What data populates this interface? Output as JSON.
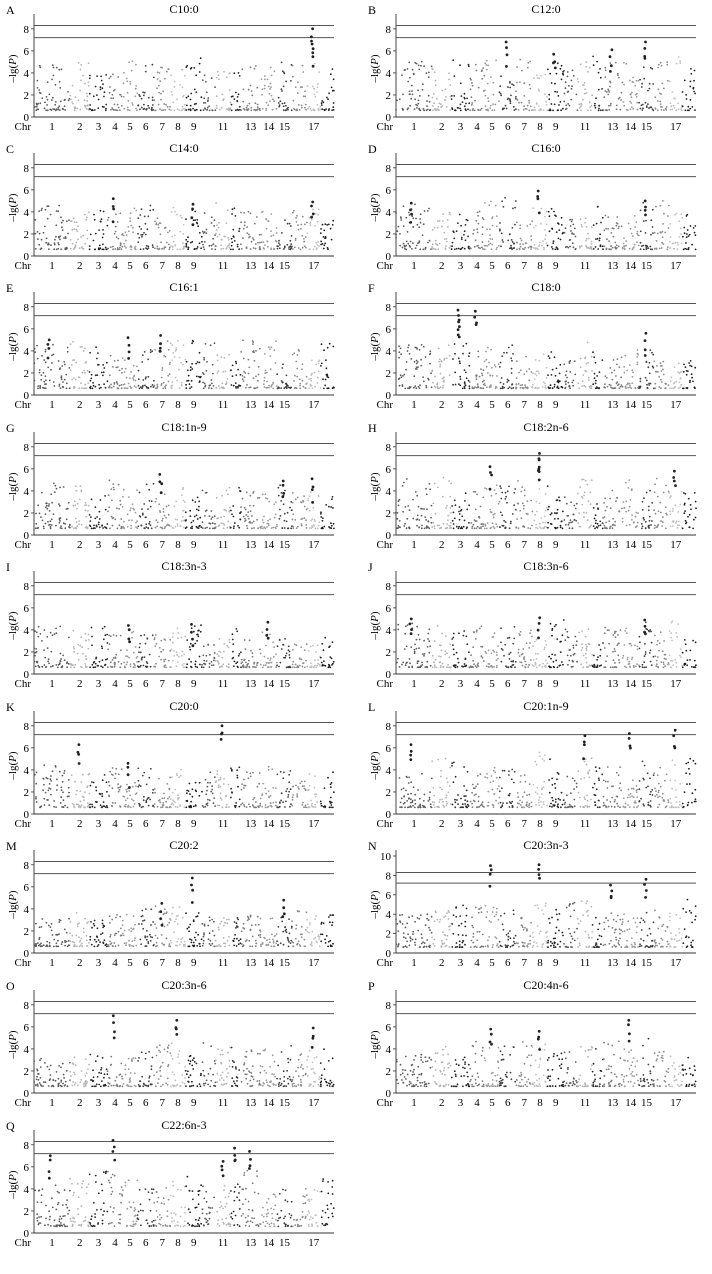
{
  "figure": {
    "x_axis_prefix": "Chr",
    "x_tick_labels": [
      "1",
      "2",
      "3",
      "4",
      "5",
      "6",
      "7",
      "8",
      "9",
      "11",
      "13",
      "14",
      "15",
      "17"
    ],
    "y_label_pre": "–lg(",
    "y_label_var": "P",
    "y_label_post": ")"
  },
  "chart_data": [
    {
      "id": "A",
      "type": "scatter",
      "title": "C10:0",
      "ylim": [
        0,
        8.8
      ],
      "yticks": [
        0,
        2,
        4,
        6,
        8
      ],
      "thresholds": [
        7.2,
        8.3
      ],
      "peaks": [
        {
          "chr": 17,
          "value": 8.0
        },
        {
          "chr": 17,
          "value": 6.2
        }
      ],
      "typical_max": 4.6
    },
    {
      "id": "B",
      "type": "scatter",
      "title": "C12:0",
      "ylim": [
        0,
        8.8
      ],
      "yticks": [
        0,
        2,
        4,
        6,
        8
      ],
      "thresholds": [
        7.2,
        8.3
      ],
      "peaks": [
        {
          "chr": 6,
          "value": 6.8
        },
        {
          "chr": 15,
          "value": 6.8
        },
        {
          "chr": 13,
          "value": 6.1
        },
        {
          "chr": 9,
          "value": 5.7
        }
      ],
      "typical_max": 4.8
    },
    {
      "id": "C",
      "type": "scatter",
      "title": "C14:0",
      "ylim": [
        0,
        8.8
      ],
      "yticks": [
        0,
        2,
        4,
        6,
        8
      ],
      "thresholds": [
        7.2,
        8.3
      ],
      "peaks": [
        {
          "chr": 4,
          "value": 5.2
        },
        {
          "chr": 17,
          "value": 4.9
        },
        {
          "chr": 9,
          "value": 4.7
        }
      ],
      "typical_max": 4.2
    },
    {
      "id": "D",
      "type": "scatter",
      "title": "C16:0",
      "ylim": [
        0,
        8.8
      ],
      "yticks": [
        0,
        2,
        4,
        6,
        8
      ],
      "thresholds": [
        7.2,
        8.3
      ],
      "peaks": [
        {
          "chr": 8,
          "value": 5.9
        },
        {
          "chr": 15,
          "value": 5.0
        },
        {
          "chr": 1,
          "value": 4.8
        }
      ],
      "typical_max": 4.3
    },
    {
      "id": "E",
      "type": "scatter",
      "title": "C16:1",
      "ylim": [
        0,
        8.8
      ],
      "yticks": [
        0,
        2,
        4,
        6,
        8
      ],
      "thresholds": [
        7.2,
        8.3
      ],
      "peaks": [
        {
          "chr": 5,
          "value": 5.2
        },
        {
          "chr": 7,
          "value": 5.4
        },
        {
          "chr": 1,
          "value": 5.0
        }
      ],
      "typical_max": 4.3
    },
    {
      "id": "F",
      "type": "scatter",
      "title": "C18:0",
      "ylim": [
        0,
        8.8
      ],
      "yticks": [
        0,
        2,
        4,
        6,
        8
      ],
      "thresholds": [
        7.2,
        8.3
      ],
      "peaks": [
        {
          "chr": 3,
          "value": 7.7
        },
        {
          "chr": 4,
          "value": 7.6
        },
        {
          "chr": 3,
          "value": 6.8
        },
        {
          "chr": 15,
          "value": 5.6
        }
      ],
      "typical_max": 4.0
    },
    {
      "id": "G",
      "type": "scatter",
      "title": "C18:1n-9",
      "ylim": [
        0,
        8.8
      ],
      "yticks": [
        0,
        2,
        4,
        6,
        8
      ],
      "thresholds": [
        7.2,
        8.3
      ],
      "peaks": [
        {
          "chr": 7,
          "value": 5.5
        },
        {
          "chr": 17,
          "value": 5.1
        },
        {
          "chr": 15,
          "value": 4.9
        }
      ],
      "typical_max": 4.2
    },
    {
      "id": "H",
      "type": "scatter",
      "title": "C18:2n-6",
      "ylim": [
        0,
        8.8
      ],
      "yticks": [
        0,
        2,
        4,
        6,
        8
      ],
      "thresholds": [
        7.2,
        8.3
      ],
      "peaks": [
        {
          "chr": 8,
          "value": 7.4
        },
        {
          "chr": 5,
          "value": 6.2
        },
        {
          "chr": 17,
          "value": 5.8
        },
        {
          "chr": 8,
          "value": 6.8
        }
      ],
      "typical_max": 4.4
    },
    {
      "id": "I",
      "type": "scatter",
      "title": "C18:3n-3",
      "ylim": [
        0,
        8.8
      ],
      "yticks": [
        0,
        2,
        4,
        6,
        8
      ],
      "thresholds": [
        7.2,
        8.3
      ],
      "peaks": [
        {
          "chr": 14,
          "value": 4.7
        },
        {
          "chr": 9,
          "value": 4.5
        },
        {
          "chr": 5,
          "value": 4.4
        }
      ],
      "typical_max": 3.6
    },
    {
      "id": "J",
      "type": "scatter",
      "title": "C18:3n-6",
      "ylim": [
        0,
        8.8
      ],
      "yticks": [
        0,
        2,
        4,
        6,
        8
      ],
      "thresholds": [
        7.2,
        8.3
      ],
      "peaks": [
        {
          "chr": 1,
          "value": 5.0
        },
        {
          "chr": 8,
          "value": 5.1
        },
        {
          "chr": 15,
          "value": 4.9
        }
      ],
      "typical_max": 4.0
    },
    {
      "id": "K",
      "type": "scatter",
      "title": "C20:0",
      "ylim": [
        0,
        8.8
      ],
      "yticks": [
        0,
        2,
        4,
        6,
        8
      ],
      "thresholds": [
        7.2,
        8.3
      ],
      "peaks": [
        {
          "chr": 11,
          "value": 8.0
        },
        {
          "chr": 2,
          "value": 6.3
        },
        {
          "chr": 5,
          "value": 4.6
        }
      ],
      "typical_max": 3.6
    },
    {
      "id": "L",
      "type": "scatter",
      "title": "C20:1n-9",
      "ylim": [
        0,
        8.8
      ],
      "yticks": [
        0,
        2,
        4,
        6,
        8
      ],
      "thresholds": [
        7.2,
        8.3
      ],
      "peaks": [
        {
          "chr": 14,
          "value": 7.3
        },
        {
          "chr": 17,
          "value": 7.6
        },
        {
          "chr": 11,
          "value": 7.1
        },
        {
          "chr": 1,
          "value": 6.3
        }
      ],
      "typical_max": 4.6
    },
    {
      "id": "M",
      "type": "scatter",
      "title": "C20:2",
      "ylim": [
        0,
        8.8
      ],
      "yticks": [
        0,
        2,
        4,
        6,
        8
      ],
      "thresholds": [
        7.2,
        8.3
      ],
      "peaks": [
        {
          "chr": 9,
          "value": 6.8
        },
        {
          "chr": 15,
          "value": 4.8
        },
        {
          "chr": 7,
          "value": 4.5
        }
      ],
      "typical_max": 3.7
    },
    {
      "id": "N",
      "type": "scatter",
      "title": "C20:3n-3",
      "ylim": [
        0,
        10
      ],
      "yticks": [
        0,
        2,
        4,
        6,
        8,
        10
      ],
      "thresholds": [
        7.2,
        8.3
      ],
      "peaks": [
        {
          "chr": 5,
          "value": 9.0
        },
        {
          "chr": 8,
          "value": 9.1
        },
        {
          "chr": 15,
          "value": 7.6
        },
        {
          "chr": 13,
          "value": 7.0
        }
      ],
      "typical_max": 5.0
    },
    {
      "id": "O",
      "type": "scatter",
      "title": "C20:3n-6",
      "ylim": [
        0,
        8.8
      ],
      "yticks": [
        0,
        2,
        4,
        6,
        8
      ],
      "thresholds": [
        7.2,
        8.3
      ],
      "peaks": [
        {
          "chr": 4,
          "value": 7.0
        },
        {
          "chr": 8,
          "value": 6.6
        },
        {
          "chr": 17,
          "value": 5.9
        }
      ],
      "typical_max": 4.0
    },
    {
      "id": "P",
      "type": "scatter",
      "title": "C20:4n-6",
      "ylim": [
        0,
        8.8
      ],
      "yticks": [
        0,
        2,
        4,
        6,
        8
      ],
      "thresholds": [
        7.2,
        8.3
      ],
      "peaks": [
        {
          "chr": 14,
          "value": 6.6
        },
        {
          "chr": 5,
          "value": 5.8
        },
        {
          "chr": 8,
          "value": 5.6
        }
      ],
      "typical_max": 4.0
    },
    {
      "id": "Q",
      "type": "scatter",
      "title": "C22:6n-3",
      "ylim": [
        0,
        8.8
      ],
      "yticks": [
        0,
        2,
        4,
        6,
        8
      ],
      "thresholds": [
        7.2,
        8.3
      ],
      "peaks": [
        {
          "chr": 4,
          "value": 8.4
        },
        {
          "chr": 12,
          "value": 7.7
        },
        {
          "chr": 13,
          "value": 7.4
        },
        {
          "chr": 1,
          "value": 7.0
        },
        {
          "chr": 11,
          "value": 6.5
        }
      ],
      "typical_max": 5.0
    }
  ]
}
